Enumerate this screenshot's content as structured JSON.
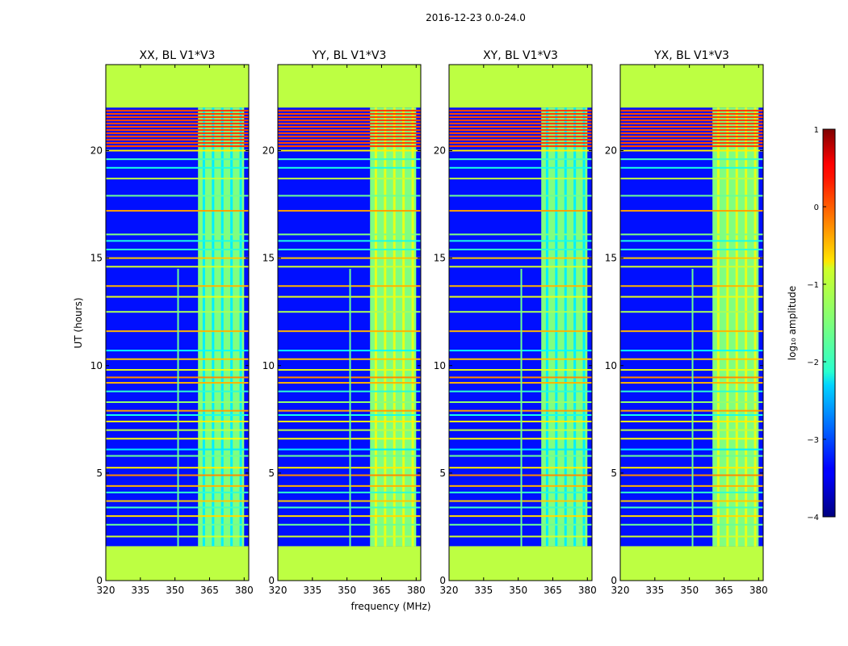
{
  "chart_data": {
    "type": "heatmap",
    "title": "2016-12-23 0.0-24.0",
    "xlabel": "frequency (MHz)",
    "ylabel": "UT (hours)",
    "xlim": [
      320,
      382
    ],
    "ylim": [
      0,
      24
    ],
    "xticks": [
      320,
      335,
      350,
      365,
      380
    ],
    "yticks": [
      0,
      5,
      10,
      15,
      20
    ],
    "colorbar": {
      "label": "log₁₀ amplitude",
      "range": [
        -4,
        1
      ],
      "ticks": [
        1,
        0,
        -1,
        -2,
        -3,
        -4
      ],
      "colormap": "jet"
    },
    "panels": [
      {
        "title": "XX, BL V1*V3"
      },
      {
        "title": "YY, BL V1*V3"
      },
      {
        "title": "XY, BL V1*V3"
      },
      {
        "title": "YX, BL V1*V3"
      }
    ],
    "data_extent_hours": [
      1.6,
      22.0
    ],
    "masked_value": -1.2,
    "background_value": -3.3,
    "band_range_mhz": [
      360,
      380
    ],
    "band_value": -1.5,
    "rfi_line_mhz": 351,
    "horizontal_lines": [
      {
        "t": 2.05,
        "v": -1.1
      },
      {
        "t": 2.6,
        "v": -1.6
      },
      {
        "t": 3.0,
        "v": -0.7
      },
      {
        "t": 3.4,
        "v": -1.8
      },
      {
        "t": 3.7,
        "v": -0.6
      },
      {
        "t": 4.1,
        "v": -1.9
      },
      {
        "t": 4.4,
        "v": -0.5
      },
      {
        "t": 4.9,
        "v": -0.3
      },
      {
        "t": 5.25,
        "v": -0.8
      },
      {
        "t": 5.8,
        "v": -1.6
      },
      {
        "t": 6.1,
        "v": -2.2
      },
      {
        "t": 6.6,
        "v": -0.9
      },
      {
        "t": 7.0,
        "v": -1.2
      },
      {
        "t": 7.4,
        "v": -0.8
      },
      {
        "t": 7.7,
        "v": -2.0
      },
      {
        "t": 7.9,
        "v": -0.4
      },
      {
        "t": 8.3,
        "v": -1.4
      },
      {
        "t": 8.8,
        "v": -1.9
      },
      {
        "t": 9.2,
        "v": -0.5
      },
      {
        "t": 9.45,
        "v": -0.3
      },
      {
        "t": 9.8,
        "v": -1.0
      },
      {
        "t": 10.3,
        "v": -0.6
      },
      {
        "t": 10.7,
        "v": -2.1
      },
      {
        "t": 11.6,
        "v": -0.5
      },
      {
        "t": 12.5,
        "v": -1.3
      },
      {
        "t": 13.2,
        "v": -1.0
      },
      {
        "t": 13.7,
        "v": -0.5
      },
      {
        "t": 14.6,
        "v": -1.1
      },
      {
        "t": 15.0,
        "v": -0.6
      },
      {
        "t": 15.4,
        "v": -1.9
      },
      {
        "t": 15.8,
        "v": -2.0
      },
      {
        "t": 16.1,
        "v": -1.5
      },
      {
        "t": 17.2,
        "v": -0.4
      },
      {
        "t": 17.9,
        "v": -1.6
      },
      {
        "t": 18.7,
        "v": -1.2
      },
      {
        "t": 19.2,
        "v": -2.0
      },
      {
        "t": 19.6,
        "v": -1.8
      },
      {
        "t": 20.0,
        "v": -0.8
      }
    ],
    "orange_band_hours": [
      20.2,
      21.9
    ]
  }
}
